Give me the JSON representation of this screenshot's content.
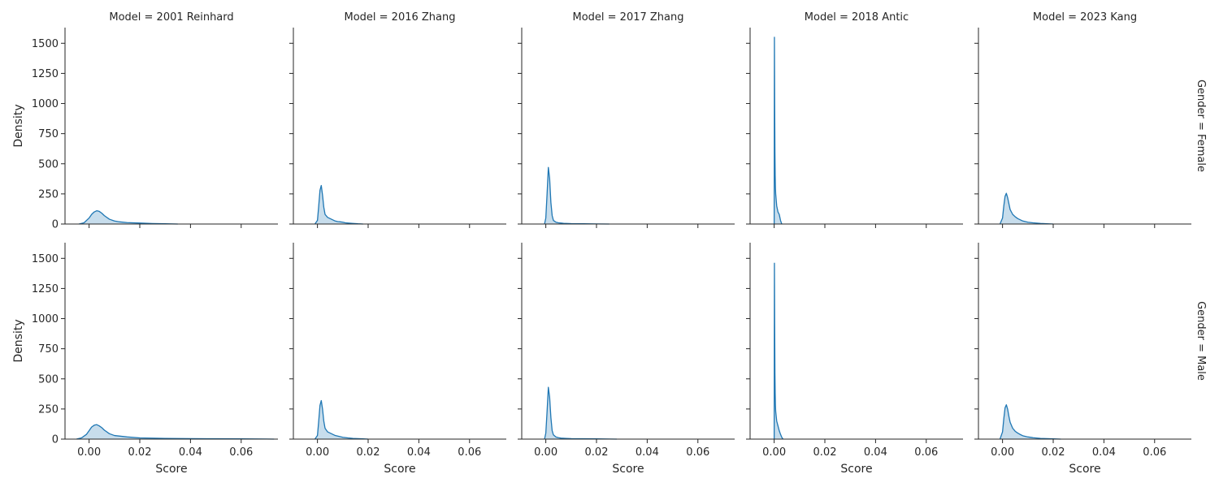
{
  "chart_data": {
    "type": "area",
    "title": "",
    "col_var": "Model",
    "row_var": "Gender",
    "columns": [
      "2001 Reinhard",
      "2016 Zhang",
      "2017 Zhang",
      "2018 Antic",
      "2023 Kang"
    ],
    "rows": [
      "Female",
      "Male"
    ],
    "col_titles": [
      "Model = 2001 Reinhard",
      "Model = 2016 Zhang",
      "Model = 2017 Zhang",
      "Model = 2018 Antic",
      "Model = 2023 Kang"
    ],
    "row_titles": [
      "Gender = Female",
      "Gender = Male"
    ],
    "xlabel": "Score",
    "ylabel": "Density",
    "xlim": [
      -0.0095,
      0.0745
    ],
    "ylim": [
      0,
      1630
    ],
    "xticks": [
      0.0,
      0.02,
      0.04,
      0.06
    ],
    "xtick_labels": [
      "0.00",
      "0.02",
      "0.04",
      "0.06"
    ],
    "yticks": [
      0,
      250,
      500,
      750,
      1000,
      1250,
      1500
    ],
    "ytick_labels": [
      "0",
      "250",
      "500",
      "750",
      "1000",
      "1250",
      "1500"
    ],
    "grid": false,
    "colors": {
      "line": "#1f77b4",
      "fill": "#1f77b4",
      "fill_opacity": 0.25,
      "axis": "#262626"
    },
    "series": [
      {
        "model": "2001 Reinhard",
        "gender": "Female",
        "x": [
          -0.004,
          -0.002,
          0.0,
          0.001,
          0.002,
          0.003,
          0.004,
          0.005,
          0.006,
          0.008,
          0.01,
          0.012,
          0.015,
          0.02,
          0.025,
          0.03,
          0.035
        ],
        "values": [
          0,
          10,
          50,
          80,
          100,
          110,
          105,
          90,
          70,
          40,
          25,
          18,
          12,
          8,
          4,
          2,
          0
        ]
      },
      {
        "model": "2016 Zhang",
        "gender": "Female",
        "x": [
          -0.001,
          0.0,
          0.0005,
          0.001,
          0.0015,
          0.002,
          0.0025,
          0.003,
          0.004,
          0.005,
          0.006,
          0.007,
          0.008,
          0.009,
          0.01,
          0.011,
          0.012,
          0.014,
          0.016,
          0.018
        ],
        "values": [
          0,
          30,
          150,
          280,
          320,
          240,
          140,
          80,
          55,
          45,
          35,
          25,
          20,
          18,
          15,
          10,
          8,
          5,
          2,
          0
        ]
      },
      {
        "model": "2017 Zhang",
        "gender": "Female",
        "x": [
          -0.0005,
          0.0,
          0.0005,
          0.001,
          0.0015,
          0.002,
          0.0025,
          0.003,
          0.004,
          0.005,
          0.006,
          0.007,
          0.008,
          0.01,
          0.012,
          0.015,
          0.02,
          0.025
        ],
        "values": [
          0,
          50,
          250,
          470,
          380,
          180,
          70,
          30,
          15,
          10,
          8,
          6,
          5,
          3,
          2,
          2,
          1,
          0
        ]
      },
      {
        "model": "2018 Antic",
        "gender": "Female",
        "x": [
          0.0,
          0.0001,
          0.0002,
          0.0003,
          0.0004,
          0.0005,
          0.0006,
          0.0008,
          0.001,
          0.0015,
          0.002,
          0.0025,
          0.003
        ],
        "values": [
          0,
          1550,
          1000,
          600,
          400,
          300,
          250,
          200,
          150,
          100,
          80,
          30,
          0
        ]
      },
      {
        "model": "2023 Kang",
        "gender": "Female",
        "x": [
          -0.001,
          0.0,
          0.0005,
          0.001,
          0.0015,
          0.002,
          0.0025,
          0.003,
          0.004,
          0.005,
          0.006,
          0.007,
          0.008,
          0.01,
          0.012,
          0.015,
          0.02
        ],
        "values": [
          0,
          50,
          150,
          230,
          255,
          220,
          170,
          120,
          80,
          60,
          45,
          35,
          25,
          15,
          10,
          5,
          0
        ]
      },
      {
        "model": "2001 Reinhard",
        "gender": "Male",
        "x": [
          -0.005,
          -0.003,
          -0.001,
          0.0,
          0.001,
          0.002,
          0.003,
          0.004,
          0.005,
          0.006,
          0.008,
          0.01,
          0.015,
          0.02,
          0.03,
          0.04,
          0.05,
          0.06,
          0.07,
          0.073
        ],
        "values": [
          0,
          10,
          40,
          70,
          100,
          115,
          120,
          110,
          95,
          75,
          45,
          30,
          18,
          10,
          6,
          4,
          3,
          2,
          1,
          0
        ]
      },
      {
        "model": "2016 Zhang",
        "gender": "Male",
        "x": [
          -0.001,
          0.0,
          0.0005,
          0.001,
          0.0015,
          0.002,
          0.0025,
          0.003,
          0.004,
          0.005,
          0.006,
          0.007,
          0.008,
          0.009,
          0.01,
          0.012,
          0.014,
          0.016,
          0.018,
          0.02
        ],
        "values": [
          0,
          30,
          150,
          280,
          320,
          250,
          150,
          90,
          60,
          50,
          40,
          30,
          25,
          20,
          15,
          10,
          6,
          4,
          2,
          0
        ]
      },
      {
        "model": "2017 Zhang",
        "gender": "Male",
        "x": [
          -0.0005,
          0.0,
          0.0005,
          0.001,
          0.0015,
          0.002,
          0.0025,
          0.003,
          0.004,
          0.005,
          0.006,
          0.008,
          0.01,
          0.015,
          0.02,
          0.025,
          0.028
        ],
        "values": [
          0,
          50,
          230,
          430,
          350,
          180,
          70,
          35,
          18,
          12,
          8,
          6,
          4,
          3,
          2,
          1,
          0
        ]
      },
      {
        "model": "2018 Antic",
        "gender": "Male",
        "x": [
          0.0,
          0.0001,
          0.0002,
          0.0003,
          0.0004,
          0.0005,
          0.0006,
          0.0008,
          0.001,
          0.0015,
          0.002,
          0.0025,
          0.003,
          0.0035
        ],
        "values": [
          0,
          1460,
          950,
          550,
          380,
          280,
          230,
          190,
          150,
          110,
          70,
          40,
          15,
          0
        ]
      },
      {
        "model": "2023 Kang",
        "gender": "Male",
        "x": [
          -0.001,
          0.0,
          0.0005,
          0.001,
          0.0015,
          0.002,
          0.0025,
          0.003,
          0.004,
          0.005,
          0.006,
          0.007,
          0.008,
          0.01,
          0.012,
          0.015,
          0.02,
          0.023
        ],
        "values": [
          0,
          60,
          170,
          260,
          285,
          250,
          190,
          140,
          90,
          65,
          50,
          38,
          28,
          18,
          12,
          6,
          2,
          0
        ]
      }
    ]
  }
}
